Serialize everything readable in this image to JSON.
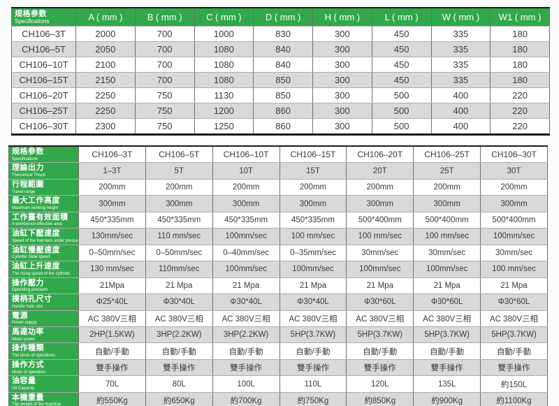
{
  "colors": {
    "header_green": "#31a94b",
    "row_gray": "#d9d9d9",
    "row_white": "#ffffff",
    "border_dark": "#1b1b1b",
    "text_dark": "#3a3a3a"
  },
  "dim_table": {
    "header_zh": "规格参数",
    "header_en": "Specifications",
    "columns": [
      "A ( mm )",
      "B ( mm )",
      "C ( mm )",
      "D ( mm )",
      "H ( mm )",
      "L ( mm )",
      "W ( mm )",
      "W1 ( mm )"
    ],
    "rows": [
      {
        "model": "CH106–3T",
        "values": [
          "2000",
          "700",
          "1000",
          "830",
          "300",
          "450",
          "335",
          "180"
        ]
      },
      {
        "model": "CH106–5T",
        "values": [
          "2050",
          "700",
          "1080",
          "840",
          "300",
          "450",
          "335",
          "180"
        ]
      },
      {
        "model": "CH106–10T",
        "values": [
          "2100",
          "700",
          "1080",
          "840",
          "300",
          "450",
          "335",
          "180"
        ]
      },
      {
        "model": "CH106–15T",
        "values": [
          "2150",
          "700",
          "1080",
          "850",
          "300",
          "450",
          "335",
          "180"
        ]
      },
      {
        "model": "CH106–20T",
        "values": [
          "2250",
          "750",
          "1130",
          "850",
          "300",
          "500",
          "400",
          "220"
        ]
      },
      {
        "model": "CH106–25T",
        "values": [
          "2250",
          "750",
          "1200",
          "860",
          "300",
          "500",
          "400",
          "220"
        ]
      },
      {
        "model": "CH106–30T",
        "values": [
          "2300",
          "750",
          "1250",
          "860",
          "300",
          "500",
          "400",
          "220"
        ]
      }
    ]
  },
  "spec_table": {
    "header_zh": "规格参数",
    "header_en": "Specifications",
    "models": [
      "CH106–3T",
      "CH106–5T",
      "CH106–10T",
      "CH106–15T",
      "CH106–20T",
      "CH106–25T",
      "CH106–30T"
    ],
    "rows": [
      {
        "zh": "理論出力",
        "en": "Theoretical Thrust",
        "values": [
          "1–3T",
          "5T",
          "10T",
          "15T",
          "20T",
          "25T",
          "30T"
        ]
      },
      {
        "zh": "行程範圍",
        "en": "Travel range",
        "values": [
          "200mm",
          "200mm",
          "200mm",
          "200mm",
          "200mm",
          "200mm",
          "200mm"
        ]
      },
      {
        "zh": "最大工作高度",
        "en": "Maximum working height",
        "values": [
          "300mm",
          "300mm",
          "300mm",
          "300mm",
          "300mm",
          "300mm",
          "300mm"
        ]
      },
      {
        "zh": "工作臺有效面積",
        "en": "A workbench effective area",
        "values": [
          "450*335mm",
          "450*335mm",
          "450*335mm",
          "450*335mm",
          "500*400mm",
          "500*400mm",
          "500*400mm"
        ]
      },
      {
        "zh": "油缸下壓速度",
        "en": "Speed of the fuel tank under pressure",
        "values": [
          "130mm/sec",
          "110 mm/sec",
          "100mm/sec",
          "100 mm/sec",
          "100 mm/sec",
          "100 mm/sec",
          "100mm/sec"
        ]
      },
      {
        "zh": "油缸慢壓速度",
        "en": "Cylinder Slow speed",
        "values": [
          "0–50mm/sec",
          "0–50mm/sec",
          "0–40mm/sec",
          "0–35mm/sec",
          "30mm/sec",
          "30mm/sec",
          "30mm/sec"
        ]
      },
      {
        "zh": "油缸上升速度",
        "en": "The rising speed of the cylinder",
        "values": [
          "130 mm/sec",
          "110mm/sec",
          "100mm/sec",
          "100mm/sec",
          "100mm/sec",
          "100mm/sec",
          "100 mm/sec"
        ]
      },
      {
        "zh": "操作壓力",
        "en": "Operating pressure",
        "values": [
          "21Mpa",
          "21 Mpa",
          "21 Mpa",
          "21 Mpa",
          "21 Mpa",
          "21 Mpa",
          "21 Mpa"
        ]
      },
      {
        "zh": "模柄孔尺寸",
        "en": "Handle hole size",
        "values": [
          "Φ25*40L",
          "Φ30*40L",
          "Φ30*40L",
          "Φ30*40L",
          "Φ30*60L",
          "Φ30*60L",
          "Φ30*60L"
        ]
      },
      {
        "zh": "電源",
        "en": "Power supply",
        "values": [
          "AC 380V三相",
          "AC 380V三相",
          "AC 380V三相",
          "AC 380V三相",
          "AC 380V三相",
          "AC 380V三相",
          "AC 380V三相"
        ]
      },
      {
        "zh": "馬達功率",
        "en": "Motor power",
        "values": [
          "2HP(1.5KW)",
          "3HP(2.2KW)",
          "3HP(2.2KW)",
          "5HP(3.7KW)",
          "5HP(3.7KW)",
          "5HP(3.7KW)",
          "5HP(3.7KW)"
        ]
      },
      {
        "zh": "操作種類",
        "en": "The kinds of operations",
        "values": [
          "自動/手動",
          "自動/手動",
          "自動/手動",
          "自動/手動",
          "自動/手動",
          "自動/手動",
          "自動/手動"
        ]
      },
      {
        "zh": "操作方式",
        "en": "Mode of operation",
        "values": [
          "雙手操作",
          "雙手操作",
          "雙手操作",
          "雙手操作",
          "雙手操作",
          "雙手操作",
          "雙手操作"
        ]
      },
      {
        "zh": "油容量",
        "en": "Oil Capacity",
        "values": [
          "70L",
          "80L",
          "100L",
          "110L",
          "120L",
          "135L",
          "約150L"
        ]
      },
      {
        "zh": "本機重量",
        "en": "The weight of the machine",
        "values": [
          "約550Kg",
          "約650Kg",
          "約700Kg",
          "約750Kg",
          "約850Kg",
          "約900Kg",
          "約1100Kg"
        ]
      }
    ]
  }
}
